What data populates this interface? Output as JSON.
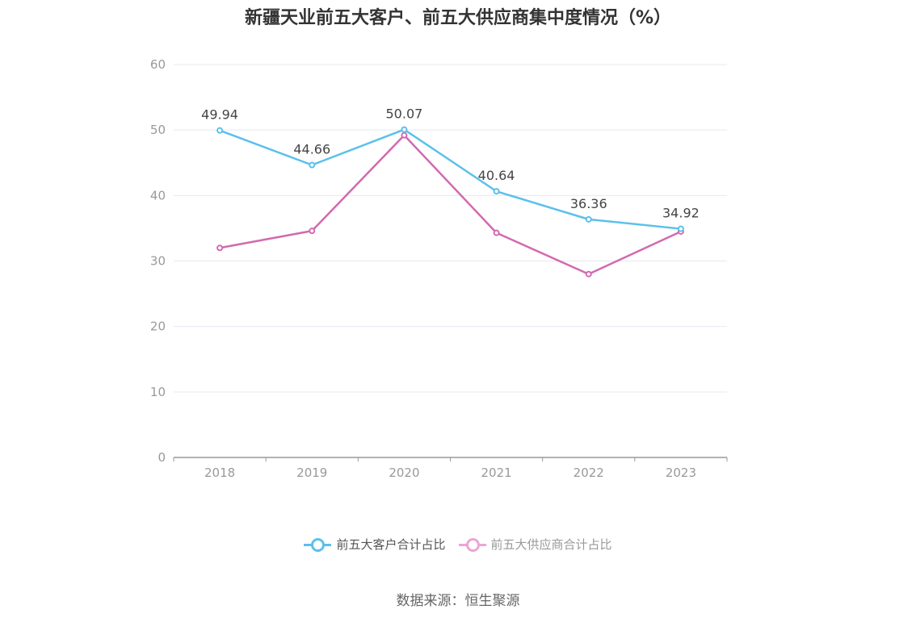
{
  "title": "新疆天业前五大客户、前五大供应商集中度情况（%）",
  "source": "数据来源：恒生聚源",
  "colors": {
    "grid": "#e6e9f2",
    "axis": "#999999",
    "tick_text": "#999999",
    "label_text": "#444444"
  },
  "chart_data": {
    "type": "line",
    "categories": [
      "2018",
      "2019",
      "2020",
      "2021",
      "2022",
      "2023"
    ],
    "ylim": [
      0,
      60
    ],
    "yticks": [
      0,
      10,
      20,
      30,
      40,
      50,
      60
    ],
    "grid": true,
    "legend_position": "bottom",
    "series": [
      {
        "name": "前五大客户合计占比",
        "color": "#5bc0eb",
        "values": [
          49.94,
          44.66,
          50.07,
          40.64,
          36.36,
          34.92
        ],
        "labels": [
          "49.94",
          "44.66",
          "50.07",
          "40.64",
          "36.36",
          "34.92"
        ]
      },
      {
        "name": "前五大供应商合计占比",
        "color": "#d26aaf",
        "legend_color": "#eaa6d4",
        "values": [
          32.0,
          34.6,
          49.2,
          34.3,
          28.0,
          34.5
        ],
        "labels": []
      }
    ]
  }
}
